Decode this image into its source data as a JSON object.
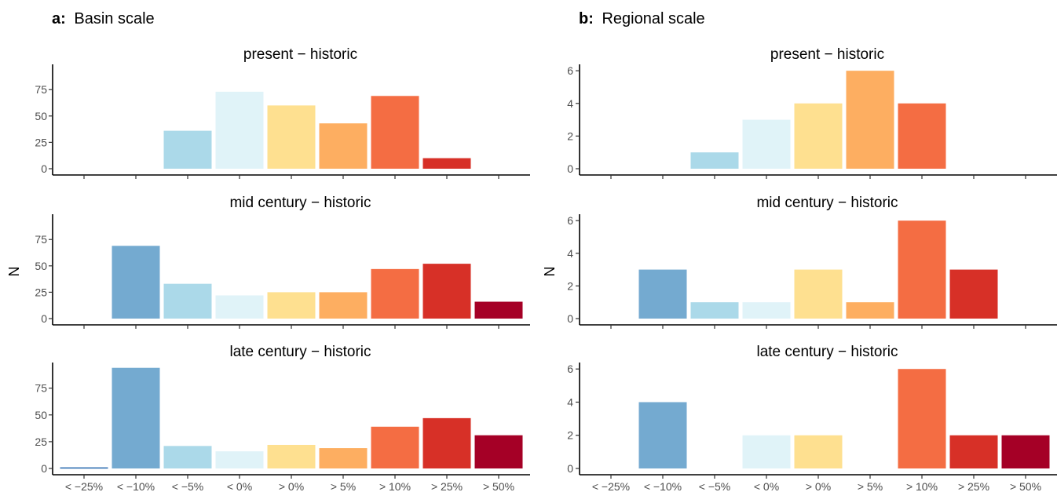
{
  "chart_data": [
    {
      "type": "bar",
      "panel_label": "a:",
      "panel_title": "Basin scale",
      "ylabel": "N",
      "categories": [
        "< −25%",
        "< −10%",
        "< −5%",
        "< 0%",
        "> 0%",
        "> 5%",
        "> 10%",
        "> 25%",
        "> 50%"
      ],
      "category_colors": [
        "#2166ac",
        "#74aad0",
        "#abd9e9",
        "#e0f3f8",
        "#fee090",
        "#fdae61",
        "#f46d43",
        "#d73027",
        "#a50026"
      ],
      "ylim": [
        0,
        96
      ],
      "yticks": [
        0,
        25,
        50,
        75
      ],
      "facets": [
        {
          "title": "present − historic",
          "values": [
            0,
            0,
            36,
            73,
            60,
            43,
            69,
            10,
            0
          ]
        },
        {
          "title": "mid century − historic",
          "values": [
            0,
            69,
            33,
            22,
            25,
            25,
            47,
            52,
            16
          ]
        },
        {
          "title": "late century − historic",
          "values": [
            1,
            94,
            21,
            16,
            22,
            19,
            39,
            47,
            31
          ]
        }
      ]
    },
    {
      "type": "bar",
      "panel_label": "b:",
      "panel_title": "Regional scale",
      "ylabel": "N",
      "categories": [
        "< −25%",
        "< −10%",
        "< −5%",
        "< 0%",
        "> 0%",
        "> 5%",
        "> 10%",
        "> 25%",
        "> 50%"
      ],
      "category_colors": [
        "#2166ac",
        "#74aad0",
        "#abd9e9",
        "#e0f3f8",
        "#fee090",
        "#fdae61",
        "#f46d43",
        "#d73027",
        "#a50026"
      ],
      "ylim": [
        0,
        6.2
      ],
      "yticks": [
        0,
        2,
        4,
        6
      ],
      "facets": [
        {
          "title": "present − historic",
          "values": [
            0,
            0,
            1,
            3,
            4,
            6,
            4,
            0,
            0
          ]
        },
        {
          "title": "mid century − historic",
          "values": [
            0,
            3,
            1,
            1,
            3,
            1,
            6,
            3,
            0
          ]
        },
        {
          "title": "late century − historic",
          "values": [
            0,
            4,
            0,
            2,
            2,
            0,
            6,
            2,
            2
          ]
        }
      ]
    }
  ]
}
